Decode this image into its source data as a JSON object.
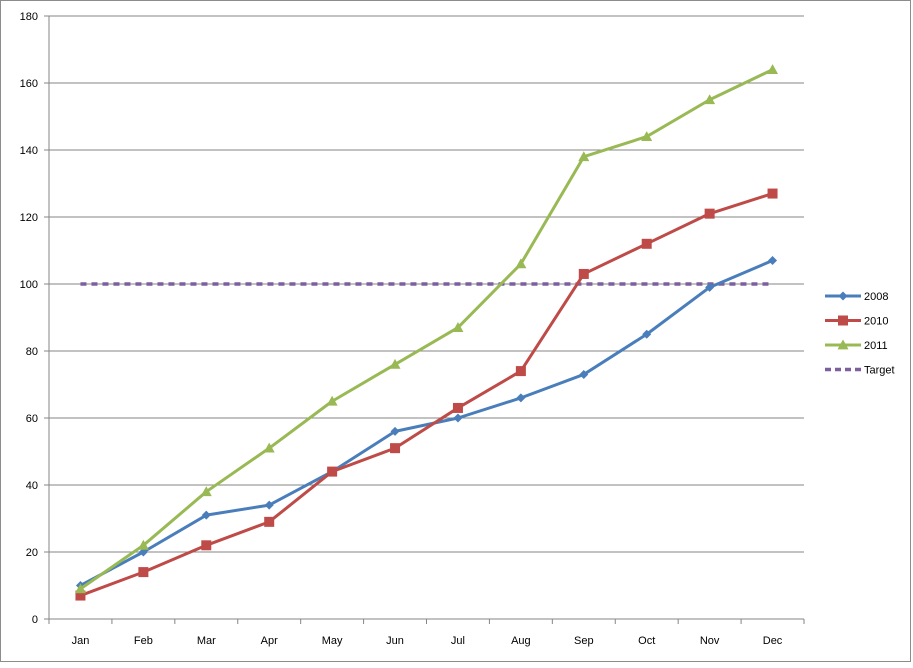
{
  "chart_data": {
    "type": "line",
    "categories": [
      "Jan",
      "Feb",
      "Mar",
      "Apr",
      "May",
      "Jun",
      "Jul",
      "Aug",
      "Sep",
      "Oct",
      "Nov",
      "Dec"
    ],
    "ylim": [
      0,
      180
    ],
    "yticks": [
      0,
      20,
      40,
      60,
      80,
      100,
      120,
      140,
      160,
      180
    ],
    "grid": "horizontal",
    "legend_position": "right",
    "series": [
      {
        "name": "2008",
        "color": "#4a7ebb",
        "marker": "diamond",
        "dash": false,
        "values": [
          10,
          20,
          31,
          34,
          44,
          56,
          60,
          66,
          73,
          85,
          99,
          107
        ]
      },
      {
        "name": "2010",
        "color": "#be4b48",
        "marker": "square",
        "dash": false,
        "values": [
          7,
          14,
          22,
          29,
          44,
          51,
          63,
          74,
          103,
          112,
          121,
          127
        ]
      },
      {
        "name": "2011",
        "color": "#98b954",
        "marker": "triangle",
        "dash": false,
        "values": [
          9,
          22,
          38,
          51,
          65,
          76,
          87,
          106,
          138,
          144,
          155,
          164
        ]
      },
      {
        "name": "Target",
        "color": "#7d5fa0",
        "marker": "none",
        "dash": true,
        "values": [
          100,
          100,
          100,
          100,
          100,
          100,
          100,
          100,
          100,
          100,
          100,
          100
        ]
      }
    ]
  }
}
